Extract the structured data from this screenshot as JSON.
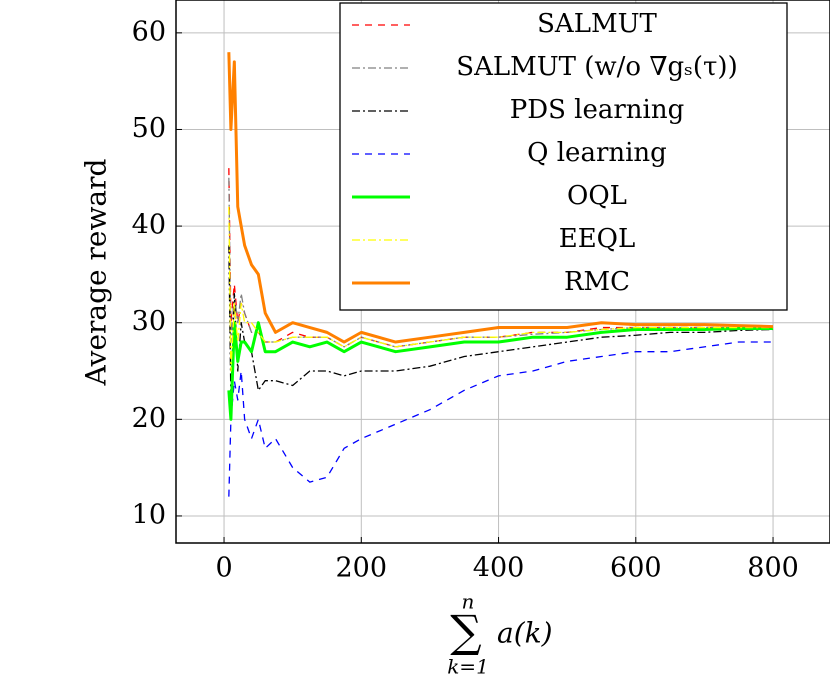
{
  "chart_data": {
    "type": "line",
    "y_label": "Average reward",
    "x_label": {
      "operator": "∑",
      "upper": "n",
      "lower": "k=1",
      "term": "a(k)"
    },
    "x": [
      7,
      10,
      15,
      20,
      25,
      30,
      40,
      50,
      60,
      75,
      100,
      125,
      150,
      175,
      200,
      250,
      300,
      350,
      400,
      450,
      500,
      550,
      600,
      650,
      700,
      750,
      800
    ],
    "series": [
      {
        "name": "SALMUT",
        "color": "#ff0000",
        "style": "dashed",
        "values": [
          46,
          30,
          34,
          30,
          32,
          31,
          29,
          29,
          28,
          28,
          29,
          28.5,
          28.5,
          27.5,
          28.5,
          27.5,
          28,
          28.5,
          28.5,
          29,
          29,
          29.5,
          29.5,
          29.5,
          29.5,
          29.5,
          29.5
        ]
      },
      {
        "name": "SALMUT (w/o ∇gₛ(τ))",
        "color": "#808080",
        "style": "dash-dotted",
        "values": [
          45,
          28,
          33,
          30,
          33,
          31,
          29,
          29,
          28,
          28,
          28.5,
          28.5,
          28.5,
          27.5,
          28.5,
          27.5,
          28,
          28.5,
          28.5,
          28.8,
          29,
          29.3,
          29.5,
          29.5,
          29.5,
          29.5,
          29.5
        ]
      },
      {
        "name": "PDS learning",
        "color": "#000000",
        "style": "dash-dotted",
        "values": [
          38,
          22,
          33,
          25,
          30,
          28,
          27,
          23,
          24,
          24,
          23.5,
          25,
          25,
          24.5,
          25,
          25,
          25.5,
          26.5,
          27,
          27.5,
          28,
          28.5,
          28.7,
          29,
          29,
          29.2,
          29.3
        ]
      },
      {
        "name": "Q learning",
        "color": "#0000ff",
        "style": "dashed",
        "values": [
          12,
          20,
          24,
          22,
          25,
          20,
          18,
          20,
          17,
          18,
          15,
          13.5,
          14,
          17,
          18,
          19.5,
          21,
          23,
          24.5,
          25,
          26,
          26.5,
          27,
          27,
          27.5,
          28,
          28
        ]
      },
      {
        "name": "OQL",
        "color": "#00ff00",
        "style": "thick",
        "values": [
          23,
          20,
          30,
          26,
          28,
          28,
          27,
          30,
          27,
          27,
          28,
          27.5,
          28,
          27,
          28,
          27,
          27.5,
          28,
          28,
          28.5,
          28.5,
          29,
          29.3,
          29.3,
          29.3,
          29.4,
          29.4
        ]
      },
      {
        "name": "EEQL",
        "color": "#ffff00",
        "style": "dash-dotted",
        "values": [
          42,
          25,
          32,
          28,
          32,
          30,
          30,
          29,
          28,
          28,
          28.5,
          28.5,
          28.5,
          27.5,
          28.5,
          27.5,
          28,
          28.5,
          28.5,
          29,
          29,
          29.3,
          29.5,
          29.5,
          29.5,
          29.5,
          29.5
        ]
      },
      {
        "name": "RMC",
        "color": "#ff8000",
        "style": "thick",
        "values": [
          58,
          50,
          57,
          42,
          40,
          38,
          36,
          35,
          31,
          29,
          30,
          29.5,
          29,
          28,
          29,
          28,
          28.5,
          29,
          29.5,
          29.5,
          29.5,
          30,
          29.8,
          29.8,
          29.8,
          29.7,
          29.6
        ]
      }
    ],
    "xlim": [
      -70,
      883
    ],
    "ylim": [
      7.2,
      63.4
    ],
    "xticks": [
      0,
      200,
      400,
      600,
      800
    ],
    "yticks": [
      10,
      20,
      30,
      40,
      50,
      60
    ],
    "grid": true,
    "legend": "top-right"
  }
}
